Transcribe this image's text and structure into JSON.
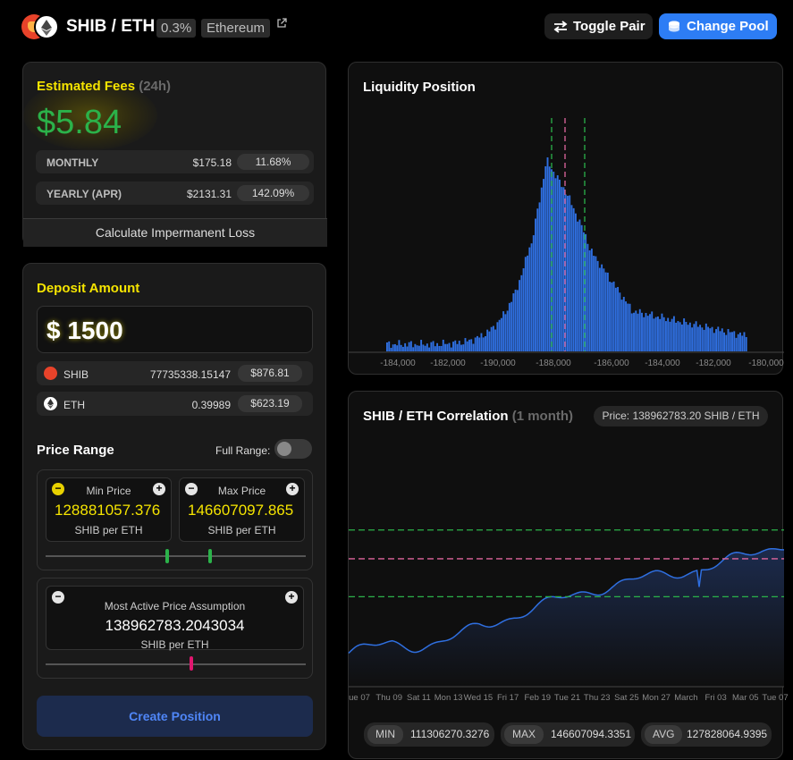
{
  "header": {
    "pair_title": "SHIB / ETH",
    "fee_tier": "0.3%",
    "network": "Ethereum",
    "toggle_pair_label": "Toggle Pair",
    "change_pool_label": "Change Pool"
  },
  "fees": {
    "title": "Estimated Fees",
    "period": "(24h)",
    "value": "$5.84",
    "monthly_label": "MONTHLY",
    "monthly_amount": "$175.18",
    "monthly_pct": "11.68%",
    "yearly_label": "YEARLY (APR)",
    "yearly_amount": "$2131.31",
    "yearly_pct": "142.09%",
    "calc_il_label": "Calculate Impermanent Loss"
  },
  "deposit": {
    "title": "Deposit Amount",
    "amount": "$ 1500",
    "tokens": [
      {
        "symbol": "SHIB",
        "qty": "77735338.15147",
        "usd": "$876.81",
        "color": "#e8432a"
      },
      {
        "symbol": "ETH",
        "qty": "0.39989",
        "usd": "$623.19",
        "color": "#ffffff"
      }
    ]
  },
  "range": {
    "title": "Price Range",
    "full_range_label": "Full Range:",
    "full_range_on": false,
    "min_label": "Min Price",
    "min_value": "128881057.376",
    "max_label": "Max Price",
    "max_value": "146607097.865",
    "unit": "SHIB per ETH",
    "active_label": "Most Active Price Assumption",
    "active_value": "138962783.2043034"
  },
  "create_label": "Create Position",
  "liquidity": {
    "title": "Liquidity Position"
  },
  "correlation": {
    "title": "SHIB / ETH Correlation",
    "period": "(1 month)",
    "price_badge": "Price: 138962783.20 SHIB / ETH",
    "min_label": "MIN",
    "min_value": "111306270.3276",
    "max_label": "MAX",
    "max_value": "146607094.3351",
    "avg_label": "AVG",
    "avg_value": "127828064.9395"
  },
  "chart_data": [
    {
      "type": "bar",
      "title": "Liquidity Position",
      "x_ticks": [
        "-184,000",
        "-182,000",
        "-190,000",
        "-188,000",
        "-186,000",
        "-184,000",
        "-182,000",
        "-180,000"
      ],
      "colors": {
        "bars": "#2f6fe0",
        "min_max_lines": "#2bb24a",
        "active_line": "#e0669e"
      }
    },
    {
      "type": "area",
      "title": "SHIB / ETH Correlation",
      "x_ticks": [
        "ue 07",
        "Thu 09",
        "Sat 11",
        "Mon 13",
        "Wed 15",
        "Fri 17",
        "Feb 19",
        "Tue 21",
        "Thu 23",
        "Sat 25",
        "Mon 27",
        "March",
        "Fri 03",
        "Mar 05",
        "Tue 07"
      ],
      "y_reference_lines": {
        "max": 146607097.865,
        "active": 138962783.2043034,
        "min": 128881057.376
      },
      "colors": {
        "line": "#2f6fe0",
        "fill": "#1c2b4d",
        "min_max_lines": "#2bb24a",
        "active_line": "#e0669e"
      }
    }
  ]
}
